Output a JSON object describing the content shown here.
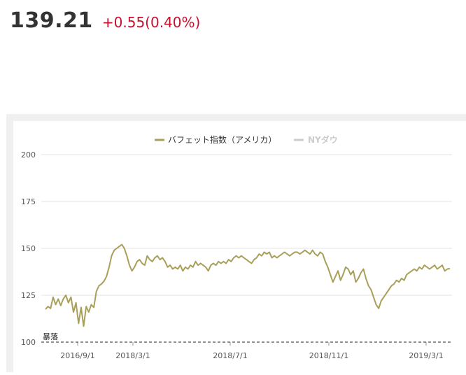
{
  "quote": {
    "price": "139.21",
    "change": "+0.55(0.40%)"
  },
  "chart_data": {
    "type": "line",
    "legend": [
      {
        "label": "バフェット指数（アメリカ）",
        "color": "#a8a05a",
        "active": true
      },
      {
        "label": "NYダウ",
        "color": "#cccccc",
        "active": false
      }
    ],
    "legend_position": "top-center",
    "x_tick_labels": [
      "2016/9/1",
      "2018/3/1",
      "2018/7/1",
      "2018/11/1",
      "2019/3/1"
    ],
    "y_tick_labels": [
      "200",
      "175",
      "150",
      "125",
      "100"
    ],
    "ylim": [
      100,
      200
    ],
    "grid": true,
    "baseline": {
      "value": 100,
      "label": "暴落",
      "style": "dashed"
    },
    "series": [
      {
        "name": "バフェット指数（アメリカ）",
        "color": "#a8a05a",
        "values": [
          117.5,
          119,
          118,
          124,
          120,
          123,
          119.5,
          123,
          125,
          121,
          124,
          116,
          121,
          110,
          118.5,
          108.5,
          119,
          116,
          120,
          118.5,
          127,
          130,
          131,
          132.5,
          135,
          140,
          146,
          149,
          150,
          151,
          152,
          150,
          146,
          141,
          138,
          140,
          143,
          144,
          142,
          141,
          146,
          144,
          143,
          145,
          146,
          144,
          145,
          143,
          140,
          141,
          139,
          140,
          139,
          141,
          138,
          140,
          139,
          141,
          140,
          143,
          141,
          142,
          141,
          140,
          138,
          141,
          142,
          141,
          143,
          142,
          143,
          142,
          144,
          143,
          145,
          146,
          145,
          146,
          145,
          144,
          143,
          142,
          144,
          145,
          147,
          146,
          148,
          147,
          148,
          145,
          146,
          145,
          146,
          147,
          148,
          147,
          146,
          147,
          148,
          148,
          147,
          148,
          149,
          148,
          147,
          149,
          147,
          146,
          148,
          147,
          143,
          140,
          136,
          132,
          135,
          138,
          133,
          136,
          140,
          139,
          136,
          138,
          132,
          134,
          137,
          139,
          134,
          130,
          128,
          124,
          120,
          118,
          122,
          124,
          126,
          128,
          130,
          131,
          133,
          132,
          134,
          133,
          136,
          137,
          138,
          139,
          138,
          140,
          139,
          141,
          140,
          139,
          140,
          141,
          139,
          140,
          141,
          138,
          139,
          139.21
        ]
      }
    ]
  }
}
